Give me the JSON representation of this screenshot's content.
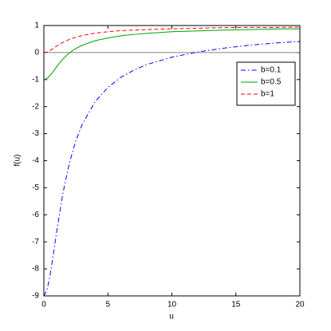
{
  "chart_data": {
    "type": "line",
    "x_label": "u",
    "y_label": "f(u)",
    "x": [
      0,
      0.25,
      0.5,
      0.75,
      1,
      1.5,
      2,
      2.5,
      3,
      4,
      5,
      6,
      7,
      8,
      10,
      12,
      14,
      16,
      18,
      20
    ],
    "series": [
      {
        "name": "b=0.1",
        "color": "#0000ff",
        "dash": "6,3,1.5,3",
        "values": [
          -9,
          -8.78,
          -8.2,
          -7.43,
          -6.62,
          -5.17,
          -4.07,
          -3.26,
          -2.65,
          -1.82,
          -1.29,
          -0.92,
          -0.66,
          -0.45,
          -0.17,
          0.02,
          0.16,
          0.27,
          0.35,
          0.41
        ]
      },
      {
        "name": "b=0.5",
        "color": "#00a000",
        "dash": "none",
        "values": [
          -1,
          -0.96,
          -0.84,
          -0.69,
          -0.52,
          -0.23,
          -0.01,
          0.15,
          0.27,
          0.44,
          0.54,
          0.62,
          0.67,
          0.71,
          0.77,
          0.8,
          0.83,
          0.85,
          0.87,
          0.88
        ]
      },
      {
        "name": "b=1",
        "color": "#ff0000",
        "dash": "5,3",
        "values": [
          0,
          0.02,
          0.08,
          0.16,
          0.24,
          0.38,
          0.49,
          0.57,
          0.63,
          0.72,
          0.77,
          0.81,
          0.83,
          0.85,
          0.88,
          0.9,
          0.92,
          0.93,
          0.93,
          0.94
        ]
      }
    ],
    "hline": 0,
    "hline_color": "#808080",
    "xlim": [
      0,
      20
    ],
    "xticks": [
      0,
      5,
      10,
      15,
      20
    ],
    "ylim": [
      -9,
      1
    ],
    "yticks": [
      -9,
      -8,
      -7,
      -6,
      -5,
      -4,
      -3,
      -2,
      -1,
      0,
      1
    ],
    "grid": false,
    "legend": "upper-right"
  }
}
